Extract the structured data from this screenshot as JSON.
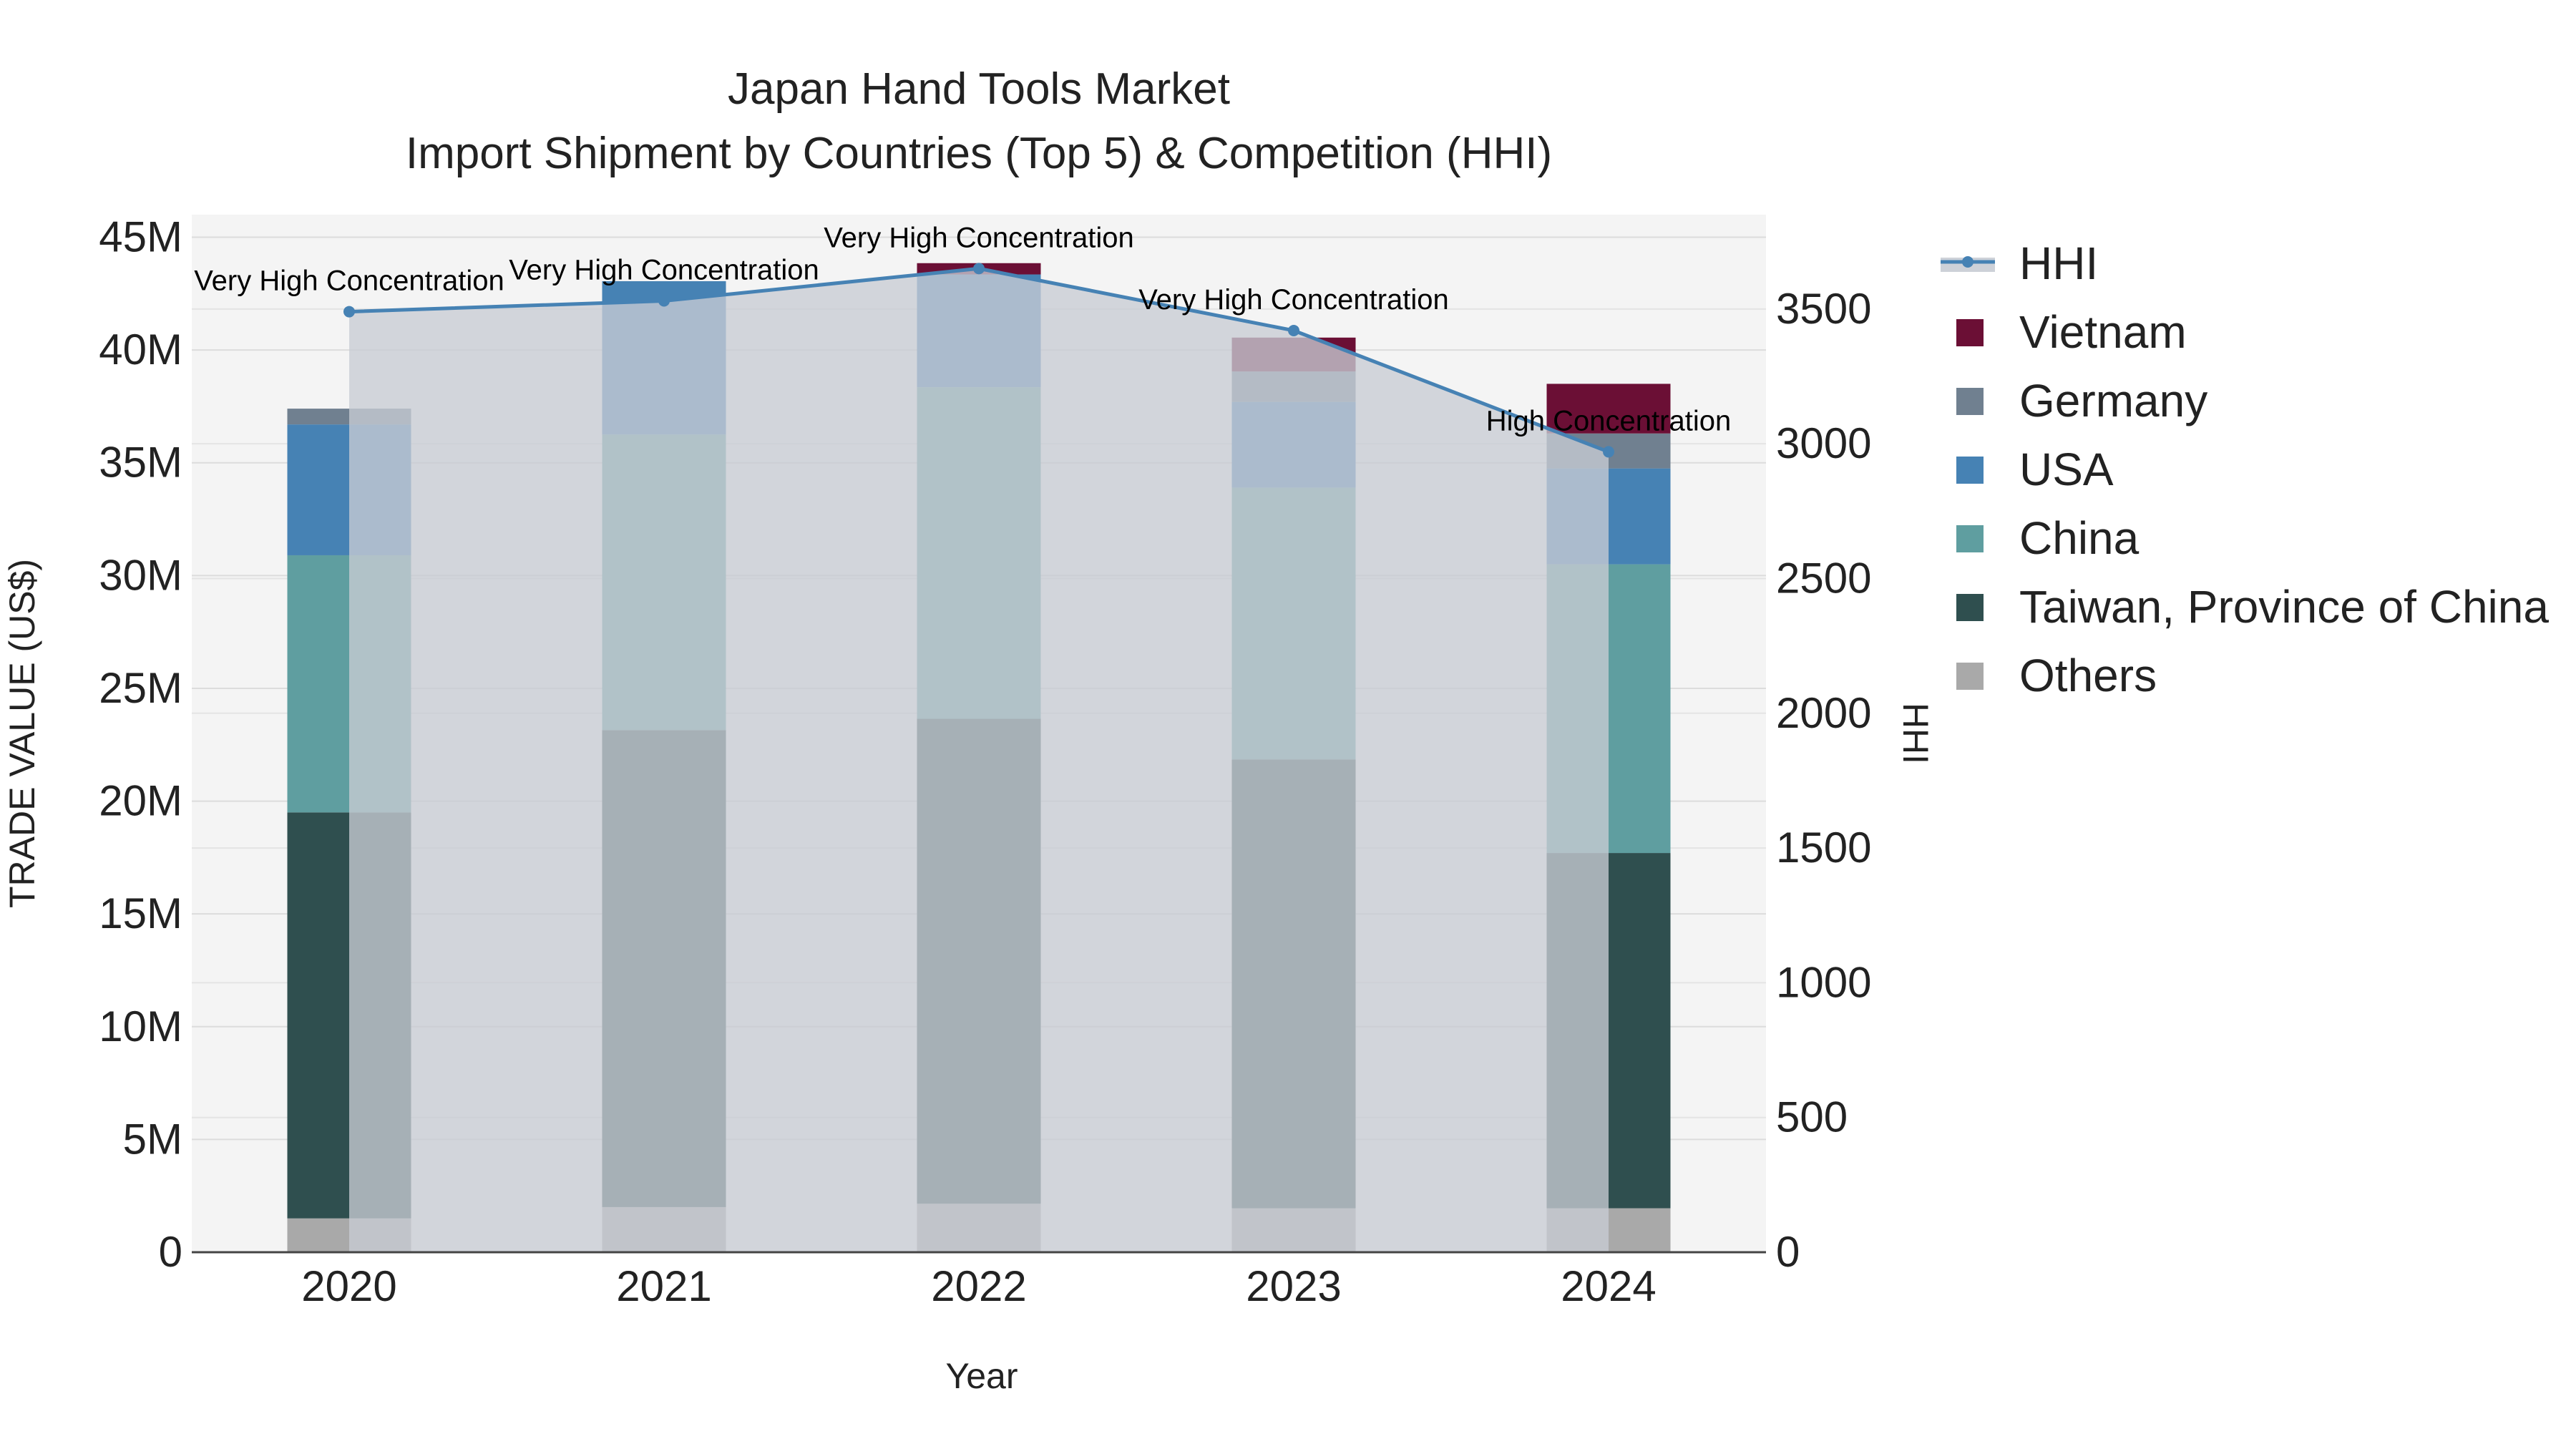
{
  "chart_data": {
    "type": "bar",
    "stacked": true,
    "title": "Japan Hand Tools Market",
    "subtitle": "Import Shipment by Countries (Top 5) & Competition (HHI)",
    "xlabel": "Year",
    "ylabel": "TRADE VALUE (US$)",
    "y2label": "HHI",
    "categories": [
      "2020",
      "2021",
      "2022",
      "2023",
      "2024"
    ],
    "ylim": [
      0,
      46000000
    ],
    "y2lim": [
      0,
      3850
    ],
    "y_ticks": [
      {
        "value": 0,
        "label": "0"
      },
      {
        "value": 5000000,
        "label": "5M"
      },
      {
        "value": 10000000,
        "label": "10M"
      },
      {
        "value": 15000000,
        "label": "15M"
      },
      {
        "value": 20000000,
        "label": "20M"
      },
      {
        "value": 25000000,
        "label": "25M"
      },
      {
        "value": 30000000,
        "label": "30M"
      },
      {
        "value": 35000000,
        "label": "35M"
      },
      {
        "value": 40000000,
        "label": "40M"
      },
      {
        "value": 45000000,
        "label": "45M"
      }
    ],
    "y2_ticks": [
      {
        "value": 0,
        "label": "0"
      },
      {
        "value": 500,
        "label": "500"
      },
      {
        "value": 1000,
        "label": "1000"
      },
      {
        "value": 1500,
        "label": "1500"
      },
      {
        "value": 2000,
        "label": "2000"
      },
      {
        "value": 2500,
        "label": "2500"
      },
      {
        "value": 3000,
        "label": "3000"
      },
      {
        "value": 3500,
        "label": "3500"
      }
    ],
    "series": [
      {
        "name": "Others",
        "color": "#a9a9a9",
        "values": [
          1500000,
          2000000,
          2150000,
          1950000,
          1950000
        ]
      },
      {
        "name": "Taiwan, Province of China",
        "color": "#2f4f4f",
        "values": [
          18000000,
          21150000,
          21500000,
          19900000,
          15750000
        ]
      },
      {
        "name": "China",
        "color": "#5f9ea0",
        "values": [
          11400000,
          13100000,
          14700000,
          12050000,
          12800000
        ]
      },
      {
        "name": "USA",
        "color": "#4682b4",
        "values": [
          5800000,
          6800000,
          5000000,
          3800000,
          4250000
        ]
      },
      {
        "name": "Germany",
        "color": "#708090",
        "values": [
          700000,
          0,
          0,
          1350000,
          1550000
        ]
      },
      {
        "name": "Vietnam",
        "color": "#6b0f35",
        "values": [
          0,
          0,
          500000,
          1500000,
          2200000
        ]
      }
    ],
    "hhi": {
      "name": "HHI",
      "color": "#4682b4",
      "area_color": "#c8ccd4",
      "values": [
        3490,
        3530,
        3650,
        3420,
        2970
      ],
      "labels": [
        "Very High Concentration",
        "Very High Concentration",
        "Very High Concentration",
        "Very High Concentration",
        "High Concentration"
      ]
    },
    "legend_position": "right"
  }
}
